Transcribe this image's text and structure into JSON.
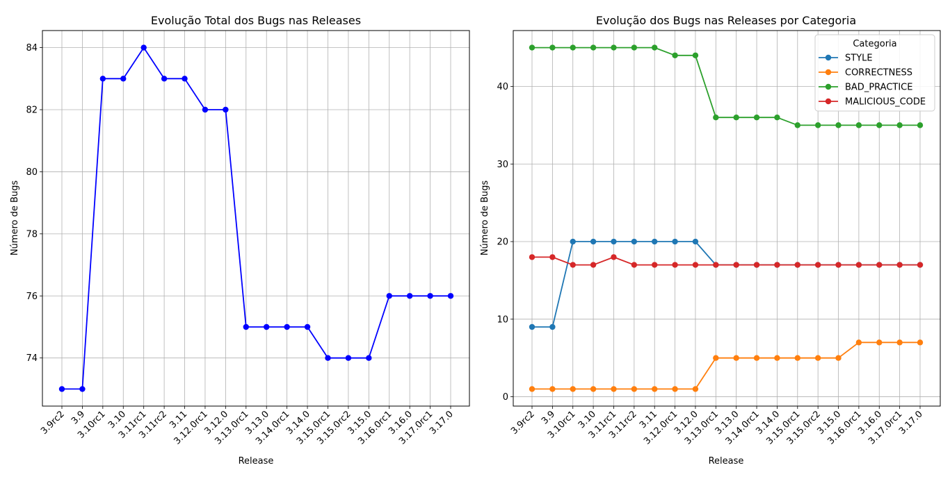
{
  "chart_data": [
    {
      "type": "line",
      "title": "Evolução Total dos Bugs nas Releases",
      "xlabel": "Release",
      "ylabel": "Número de Bugs",
      "categories": [
        "3.9rc2",
        "3.9",
        "3.10rc1",
        "3.10",
        "3.11rc1",
        "3.11rc2",
        "3.11",
        "3.12.0rc1",
        "3.12.0",
        "3.13.0rc1",
        "3.13.0",
        "3.14.0rc1",
        "3.14.0",
        "3.15.0rc1",
        "3.15.0rc2",
        "3.15.0",
        "3.16.0rc1",
        "3.16.0",
        "3.17.0rc1",
        "3.17.0"
      ],
      "yticks": [
        74,
        76,
        78,
        80,
        82,
        84
      ],
      "ylim": [
        72.45,
        84.55
      ],
      "grid": true,
      "series": [
        {
          "color": "#0000ff",
          "values": [
            73,
            73,
            83,
            83,
            84,
            83,
            83,
            82,
            82,
            75,
            75,
            75,
            75,
            74,
            74,
            74,
            76,
            76,
            76,
            76
          ]
        }
      ]
    },
    {
      "type": "line",
      "title": "Evolução dos Bugs nas Releases por Categoria",
      "xlabel": "Release",
      "ylabel": "Número de Bugs",
      "categories": [
        "3.9rc2",
        "3.9",
        "3.10rc1",
        "3.10",
        "3.11rc1",
        "3.11rc2",
        "3.11",
        "3.12.0rc1",
        "3.12.0",
        "3.13.0rc1",
        "3.13.0",
        "3.14.0rc1",
        "3.14.0",
        "3.15.0rc1",
        "3.15.0rc2",
        "3.15.0",
        "3.16.0rc1",
        "3.16.0",
        "3.17.0rc1",
        "3.17.0"
      ],
      "yticks": [
        0,
        10,
        20,
        30,
        40
      ],
      "ylim": [
        -1.2,
        47.2
      ],
      "grid": true,
      "legend": {
        "title": "Categoria",
        "placement": "top-right"
      },
      "series": [
        {
          "name": "STYLE",
          "color": "#1f77b4",
          "values": [
            9,
            9,
            20,
            20,
            20,
            20,
            20,
            20,
            20,
            17,
            17,
            17,
            17,
            17,
            17,
            17,
            17,
            17,
            17,
            17
          ]
        },
        {
          "name": "CORRECTNESS",
          "color": "#ff7f0e",
          "values": [
            1,
            1,
            1,
            1,
            1,
            1,
            1,
            1,
            1,
            5,
            5,
            5,
            5,
            5,
            5,
            5,
            7,
            7,
            7,
            7
          ]
        },
        {
          "name": "BAD_PRACTICE",
          "color": "#2ca02c",
          "values": [
            45,
            45,
            45,
            45,
            45,
            45,
            45,
            44,
            44,
            36,
            36,
            36,
            36,
            35,
            35,
            35,
            35,
            35,
            35,
            35
          ]
        },
        {
          "name": "MALICIOUS_CODE",
          "color": "#d62728",
          "values": [
            18,
            18,
            17,
            17,
            18,
            17,
            17,
            17,
            17,
            17,
            17,
            17,
            17,
            17,
            17,
            17,
            17,
            17,
            17,
            17
          ]
        }
      ]
    }
  ]
}
